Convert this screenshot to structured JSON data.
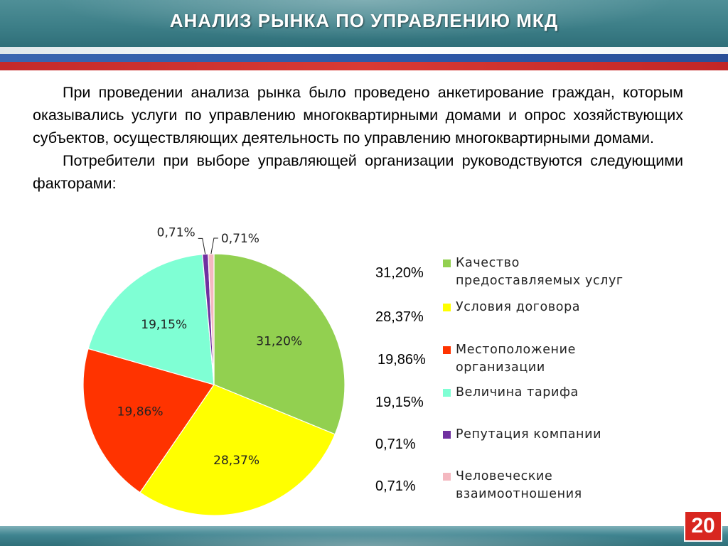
{
  "slide": {
    "title": "АНАЛИЗ РЫНКА ПО УПРАВЛЕНИЮ МКД",
    "paragraph1": "При проведении анализа рынка было проведено анкетирование граждан, которым оказывались услуги по управлению многоквартирными домами и опрос хозяйствующих субъектов, осуществляющих деятельность по управлению многоквартирными домами.",
    "paragraph2": "Потребители при выборе управляющей организации руководствуются следующими факторами:",
    "page_number": "20"
  },
  "chart_data": {
    "type": "pie",
    "categories": [
      "Качество предоставляемых услуг",
      "Условия договора",
      "Местоположение организации",
      "Величина тарифа",
      "Репутация компании",
      "Человеческие взаимоотношения"
    ],
    "values": [
      31.2,
      28.37,
      19.86,
      19.15,
      0.71,
      0.71
    ],
    "value_labels": [
      "31,20%",
      "28,37%",
      "19,86%",
      "19,15%",
      "0,71%",
      "0,71%"
    ],
    "colors": [
      "#92d050",
      "#ffff00",
      "#ff3300",
      "#7fffd4",
      "#7030a0",
      "#f4b8c0"
    ],
    "legend_position": "right",
    "legend_lines": [
      [
        "Качество",
        "предоставляемых услуг"
      ],
      [
        "Условия договора"
      ],
      [
        "Местоположение",
        "организации"
      ],
      [
        "Величина тарифа"
      ],
      [
        "Репутация компании"
      ],
      [
        "Человеческие",
        "взаимоотношения"
      ]
    ]
  }
}
